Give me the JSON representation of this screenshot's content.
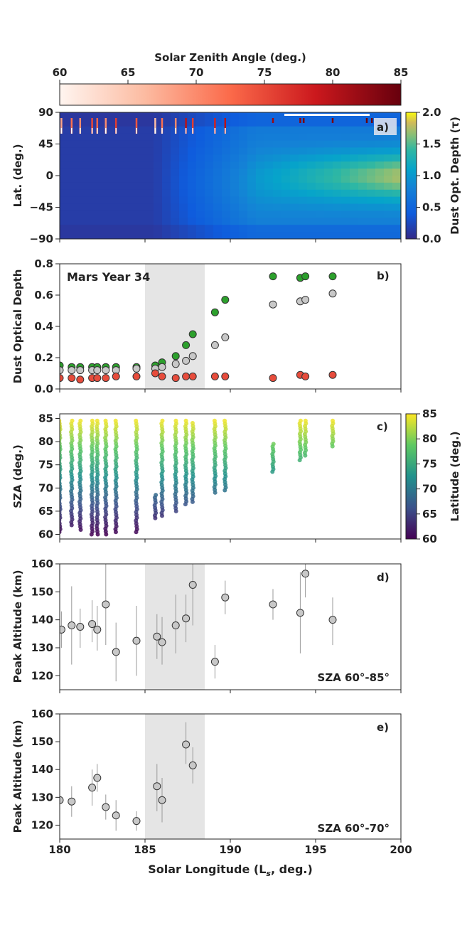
{
  "colorbar_top": {
    "label": "Solar Zenith Angle (deg.)",
    "ticks": [
      "60",
      "65",
      "70",
      "75",
      "80",
      "85"
    ],
    "range": [
      60,
      85
    ]
  },
  "colorbar_right_a": {
    "label": "Dust Opt. Depth (τ)",
    "ticks": [
      "0.0",
      "0.5",
      "1.0",
      "1.5",
      "2.0"
    ],
    "range": [
      0,
      2
    ]
  },
  "colorbar_right_c": {
    "label": "Latitude (deg.)",
    "ticks": [
      "60",
      "65",
      "70",
      "75",
      "80",
      "85"
    ],
    "range": [
      60,
      85
    ]
  },
  "shared_x": {
    "label": "Solar Longitude (Ls, deg.)",
    "label_pre": "Solar Longitude (L",
    "label_sub": "s",
    "label_post": ", deg.)",
    "ticks": [
      "180",
      "185",
      "190",
      "195",
      "200"
    ],
    "range": [
      180,
      200
    ]
  },
  "chart_data": [
    {
      "panel": "a)",
      "type": "heatmap",
      "ylabel": "Lat. (deg.)",
      "yticks": [
        "90",
        "45",
        "0",
        "−45",
        "−90"
      ],
      "ylim": [
        -90,
        90
      ],
      "xlim": [
        180,
        200
      ],
      "description_values": "dust optical depth vs Ls and latitude, low (~0.1) before Ls 186, rising to ~1.0-1.7 near equator by Ls 200",
      "profile_ls": [
        180.1,
        180.7,
        181.2,
        181.9,
        182.2,
        182.7,
        183.3,
        184.5,
        185.6,
        186.0,
        186.8,
        187.4,
        187.8,
        189.1,
        189.7,
        192.5,
        194.1,
        194.3,
        196.0,
        198.0,
        198.3
      ],
      "profile_sza": [
        68,
        72,
        70,
        75,
        73,
        70,
        76,
        74,
        66,
        72,
        70,
        80,
        76,
        78,
        80,
        82,
        83,
        84,
        84,
        85,
        85
      ]
    },
    {
      "panel": "b)",
      "type": "scatter",
      "title": "Mars Year 34",
      "ylabel": "Dust Optical Depth",
      "yticks": [
        "0.0",
        "0.2",
        "0.4",
        "0.6",
        "0.8"
      ],
      "ylim": [
        0,
        0.8
      ],
      "shaded_region": [
        185,
        188.5
      ],
      "series": [
        {
          "name": "green",
          "color": "#2ca02c",
          "x": [
            180,
            180.7,
            181.2,
            181.9,
            182.2,
            182.7,
            183.3,
            184.5,
            185.6,
            186.0,
            186.8,
            187.4,
            187.8,
            189.1,
            189.7,
            192.5,
            194.1,
            194.4,
            196.0
          ],
          "y": [
            0.15,
            0.14,
            0.14,
            0.14,
            0.14,
            0.14,
            0.14,
            0.14,
            0.15,
            0.17,
            0.21,
            0.28,
            0.35,
            0.49,
            0.57,
            0.72,
            0.71,
            0.72,
            0.72
          ]
        },
        {
          "name": "gray",
          "color": "#c8c8c8",
          "x": [
            180,
            180.7,
            181.2,
            181.9,
            182.2,
            182.7,
            183.3,
            184.5,
            185.6,
            186.0,
            186.8,
            187.4,
            187.8,
            189.1,
            189.7,
            192.5,
            194.1,
            194.4,
            196.0
          ],
          "y": [
            0.12,
            0.12,
            0.12,
            0.12,
            0.12,
            0.12,
            0.12,
            0.13,
            0.13,
            0.14,
            0.16,
            0.18,
            0.21,
            0.28,
            0.33,
            0.54,
            0.56,
            0.57,
            0.61
          ]
        },
        {
          "name": "red",
          "color": "#e74c3c",
          "x": [
            180,
            180.7,
            181.2,
            181.9,
            182.2,
            182.7,
            183.3,
            184.5,
            185.6,
            186.0,
            186.8,
            187.4,
            187.8,
            189.1,
            189.7,
            192.5,
            194.1,
            194.4,
            196.0
          ],
          "y": [
            0.07,
            0.07,
            0.06,
            0.07,
            0.07,
            0.07,
            0.08,
            0.08,
            0.1,
            0.08,
            0.07,
            0.08,
            0.08,
            0.08,
            0.08,
            0.07,
            0.09,
            0.08,
            0.09
          ]
        }
      ]
    },
    {
      "panel": "c)",
      "type": "scatter",
      "ylabel": "SZA (deg.)",
      "yticks": [
        "60",
        "65",
        "70",
        "75",
        "80",
        "85"
      ],
      "ylim": [
        59,
        86
      ],
      "columns": [
        {
          "x": 180.0,
          "min": 60.5,
          "max": 84.5
        },
        {
          "x": 180.7,
          "min": 62,
          "max": 84.5
        },
        {
          "x": 181.2,
          "min": 61,
          "max": 84.5
        },
        {
          "x": 181.9,
          "min": 60,
          "max": 84.5
        },
        {
          "x": 182.2,
          "min": 60,
          "max": 84.5
        },
        {
          "x": 182.7,
          "min": 60,
          "max": 84.5
        },
        {
          "x": 183.3,
          "min": 60.5,
          "max": 84.5
        },
        {
          "x": 184.5,
          "min": 60.5,
          "max": 84.5
        },
        {
          "x": 185.6,
          "min": 63.5,
          "max": 68.5
        },
        {
          "x": 186.0,
          "min": 64,
          "max": 84.5
        },
        {
          "x": 186.8,
          "min": 65,
          "max": 84.5
        },
        {
          "x": 187.4,
          "min": 66.5,
          "max": 84.5
        },
        {
          "x": 187.8,
          "min": 67,
          "max": 84
        },
        {
          "x": 189.1,
          "min": 69,
          "max": 84.5
        },
        {
          "x": 189.7,
          "min": 69.5,
          "max": 84.5
        },
        {
          "x": 192.5,
          "min": 73.5,
          "max": 79.5
        },
        {
          "x": 194.1,
          "min": 76,
          "max": 84.5
        },
        {
          "x": 194.4,
          "min": 77,
          "max": 84.5
        },
        {
          "x": 196.0,
          "min": 79,
          "max": 84.5
        }
      ]
    },
    {
      "panel": "d)",
      "type": "scatter",
      "ylabel": "Peak Altitude (km)",
      "yticks": [
        "120",
        "130",
        "140",
        "150",
        "160"
      ],
      "ylim": [
        115,
        160
      ],
      "annotation": "SZA 60°-85°",
      "shaded_region": [
        185,
        188.5
      ],
      "points": [
        {
          "x": 180.1,
          "y": 136.5,
          "lo": 130,
          "hi": 143
        },
        {
          "x": 180.7,
          "y": 138,
          "lo": 124,
          "hi": 152
        },
        {
          "x": 181.2,
          "y": 137.5,
          "lo": 130,
          "hi": 144
        },
        {
          "x": 181.9,
          "y": 138.5,
          "lo": 132,
          "hi": 147
        },
        {
          "x": 182.2,
          "y": 136.5,
          "lo": 129,
          "hi": 145
        },
        {
          "x": 182.7,
          "y": 145.5,
          "lo": 131,
          "hi": 160
        },
        {
          "x": 183.3,
          "y": 128.5,
          "lo": 118,
          "hi": 139
        },
        {
          "x": 184.5,
          "y": 132.5,
          "lo": 120,
          "hi": 145
        },
        {
          "x": 185.7,
          "y": 134,
          "lo": 126,
          "hi": 142
        },
        {
          "x": 186.0,
          "y": 132,
          "lo": 124,
          "hi": 141
        },
        {
          "x": 186.8,
          "y": 138,
          "lo": 128,
          "hi": 149
        },
        {
          "x": 187.4,
          "y": 140.5,
          "lo": 132,
          "hi": 149
        },
        {
          "x": 187.8,
          "y": 152.5,
          "lo": 138,
          "hi": 160
        },
        {
          "x": 189.1,
          "y": 125,
          "lo": 119,
          "hi": 131
        },
        {
          "x": 189.7,
          "y": 148,
          "lo": 142,
          "hi": 154
        },
        {
          "x": 192.5,
          "y": 145.5,
          "lo": 140,
          "hi": 151
        },
        {
          "x": 194.1,
          "y": 142.5,
          "lo": 128,
          "hi": 157
        },
        {
          "x": 194.4,
          "y": 156.5,
          "lo": 148,
          "hi": 160
        },
        {
          "x": 196.0,
          "y": 140,
          "lo": 131,
          "hi": 148
        }
      ]
    },
    {
      "panel": "e)",
      "type": "scatter",
      "ylabel": "Peak Altitude (km)",
      "yticks": [
        "120",
        "130",
        "140",
        "150",
        "160"
      ],
      "ylim": [
        115,
        160
      ],
      "annotation": "SZA 60°-70°",
      "shaded_region": [
        185,
        188.5
      ],
      "points": [
        {
          "x": 180.0,
          "y": 129,
          "lo": 122,
          "hi": 137
        },
        {
          "x": 180.7,
          "y": 128.5,
          "lo": 123,
          "hi": 134
        },
        {
          "x": 181.9,
          "y": 133.5,
          "lo": 127,
          "hi": 140
        },
        {
          "x": 182.2,
          "y": 137,
          "lo": 132,
          "hi": 142
        },
        {
          "x": 182.7,
          "y": 126.5,
          "lo": 122,
          "hi": 131
        },
        {
          "x": 183.3,
          "y": 123.5,
          "lo": 118,
          "hi": 129
        },
        {
          "x": 184.5,
          "y": 121.5,
          "lo": 118,
          "hi": 125
        },
        {
          "x": 185.7,
          "y": 134,
          "lo": 125,
          "hi": 142
        },
        {
          "x": 186.0,
          "y": 129,
          "lo": 121,
          "hi": 137
        },
        {
          "x": 187.4,
          "y": 149,
          "lo": 142,
          "hi": 157
        },
        {
          "x": 187.8,
          "y": 141.5,
          "lo": 135,
          "hi": 148
        }
      ]
    }
  ]
}
